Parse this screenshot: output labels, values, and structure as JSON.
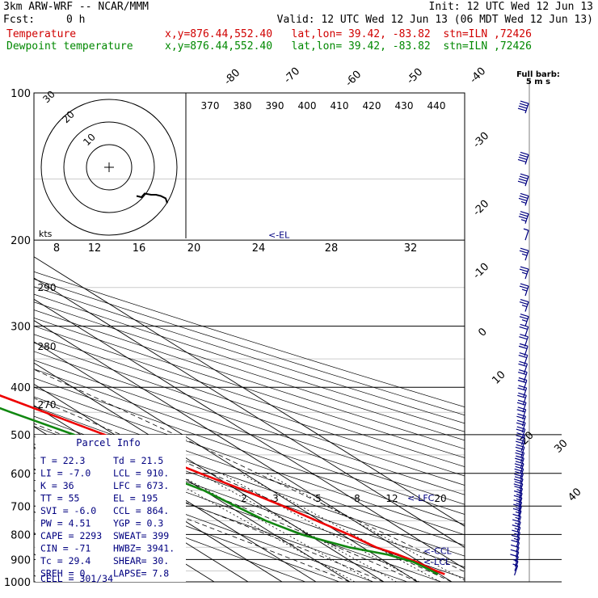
{
  "header": {
    "model": "3km ARW-WRF -- NCAR/MMM",
    "init": "Init: 12 UTC Wed 12 Jun 13",
    "fcst_label": "Fcst:",
    "fcst_value": "0 h",
    "valid": "Valid: 12 UTC Wed 12 Jun 13 (06 MDT Wed 12 Jun 13)",
    "temp_label": "Temperature",
    "temp_loc": "x,y=876.44,552.40   lat,lon= 39.42, -83.82  stn=ILN ,72426",
    "dew_label": "Dewpoint temperature",
    "dew_loc": "x,y=876.44,552.40   lat,lon= 39.42, -83.82  stn=ILN ,72426"
  },
  "colors": {
    "temperature": "#ee0000",
    "dewpoint": "#118811",
    "grid": "#000000",
    "label": "#000080",
    "wind": "#000080"
  },
  "chart_data": {
    "type": "line",
    "title": "",
    "xlabel": "",
    "ylabel": "",
    "x_axis": "temperature (C), skewed",
    "y_axis": "pressure (hPa), log scale",
    "pressure_levels": [
      100,
      200,
      300,
      400,
      500,
      600,
      700,
      800,
      900,
      1000
    ],
    "ylim": [
      1000,
      100
    ],
    "isotherm_labels": [
      -80,
      -70,
      -60,
      -50,
      -40,
      -30,
      -20,
      -10,
      0,
      10,
      20,
      30,
      40
    ],
    "theta_labels": [
      370,
      380,
      390,
      400,
      410,
      420,
      430,
      440
    ],
    "theta_left_labels": [
      290,
      280,
      270
    ],
    "mixing_ratio_labels": [
      "2",
      "3",
      "5",
      "8",
      "12",
      "20"
    ],
    "series": [
      {
        "name": "Temperature",
        "color": "#ee0000",
        "points": [
          [
            100,
            -58
          ],
          [
            130,
            -56
          ],
          [
            170,
            -59
          ],
          [
            200,
            -62
          ],
          [
            250,
            -54
          ],
          [
            300,
            -44
          ],
          [
            350,
            -36
          ],
          [
            400,
            -28
          ],
          [
            450,
            -20
          ],
          [
            500,
            -13
          ],
          [
            550,
            -8
          ],
          [
            600,
            -3
          ],
          [
            650,
            2
          ],
          [
            700,
            6
          ],
          [
            750,
            9
          ],
          [
            800,
            12
          ],
          [
            850,
            14
          ],
          [
            880,
            17
          ],
          [
            910,
            19
          ],
          [
            940,
            20
          ],
          [
            965,
            21.5
          ]
        ]
      },
      {
        "name": "Dewpoint temperature",
        "color": "#118811",
        "points": [
          [
            100,
            -70
          ],
          [
            130,
            -75
          ],
          [
            150,
            -80
          ],
          [
            180,
            -82
          ],
          [
            200,
            -80
          ],
          [
            250,
            -68
          ],
          [
            300,
            -57
          ],
          [
            350,
            -47
          ],
          [
            400,
            -38
          ],
          [
            450,
            -30
          ],
          [
            500,
            -22
          ],
          [
            550,
            -18
          ],
          [
            600,
            -15
          ],
          [
            650,
            -10
          ],
          [
            700,
            -8
          ],
          [
            750,
            -6
          ],
          [
            800,
            -2
          ],
          [
            850,
            6
          ],
          [
            880,
            14
          ],
          [
            910,
            18
          ],
          [
            940,
            19
          ],
          [
            965,
            19.5
          ]
        ]
      }
    ],
    "annotations": [
      {
        "text": "<-EL",
        "p": 195
      },
      {
        "text": "<-LFC",
        "p": 673
      },
      {
        "text": "<-CCL",
        "p": 864
      },
      {
        "text": "<-LCL",
        "p": 910
      }
    ],
    "hodograph": {
      "rings_label": "kts",
      "speed_labels": [
        "8",
        "12",
        "16",
        "20",
        "24",
        "28",
        "32"
      ],
      "ring_labels": [
        "10",
        "20",
        "30"
      ],
      "trace_uv": [
        [
          1.5,
          -3.5
        ],
        [
          0,
          -4
        ],
        [
          -1,
          -2.5
        ],
        [
          -3,
          -3
        ],
        [
          -4.5,
          -3
        ],
        [
          -6,
          -3.5
        ],
        [
          -7.5,
          -4.5
        ],
        [
          -8,
          -6.5
        ]
      ]
    },
    "wind_barbs": {
      "title": "Full barb:",
      "unit": "5 m s",
      "pressures": [
        110,
        140,
        155,
        170,
        185,
        200,
        220,
        240,
        260,
        280,
        300,
        315,
        330,
        345,
        360,
        375,
        390,
        405,
        420,
        435,
        450,
        465,
        480,
        495,
        510,
        525,
        540,
        555,
        570,
        585,
        600,
        615,
        630,
        645,
        660,
        675,
        690,
        705,
        720,
        735,
        750,
        770,
        790,
        810,
        830,
        850,
        870,
        890,
        910,
        930,
        950,
        970
      ],
      "speeds_ms": [
        40,
        40,
        40,
        35,
        35,
        5,
        25,
        25,
        25,
        25,
        25,
        20,
        20,
        20,
        20,
        20,
        20,
        20,
        20,
        20,
        20,
        20,
        20,
        20,
        20,
        20,
        20,
        20,
        20,
        20,
        20,
        20,
        20,
        20,
        20,
        15,
        15,
        15,
        15,
        15,
        15,
        15,
        15,
        15,
        15,
        15,
        10,
        10,
        10,
        10,
        5,
        5
      ]
    }
  },
  "parcel_info": {
    "title": "Parcel Info",
    "rows": [
      [
        "T   =   22.3",
        "Td  =  21.5"
      ],
      [
        "LI  =   -7.0",
        "LCL =  910."
      ],
      [
        "K   =     36",
        "LFC =  673."
      ],
      [
        "TT  =     55",
        "EL  =   195"
      ],
      [
        "SVI =   -6.0",
        "CCL =  864."
      ],
      [
        "PW  =   4.51",
        "YGP =   0.3"
      ],
      [
        "CAPE =  2293",
        "SWEAT=  399"
      ],
      [
        "CIN  =   -71",
        "HWBZ= 3941."
      ],
      [
        "Tc   =  29.4",
        "SHEAR=  30."
      ],
      [
        "SREH =     0",
        "LAPSE=  7.8"
      ]
    ],
    "cell": "CELL = 301/34"
  }
}
